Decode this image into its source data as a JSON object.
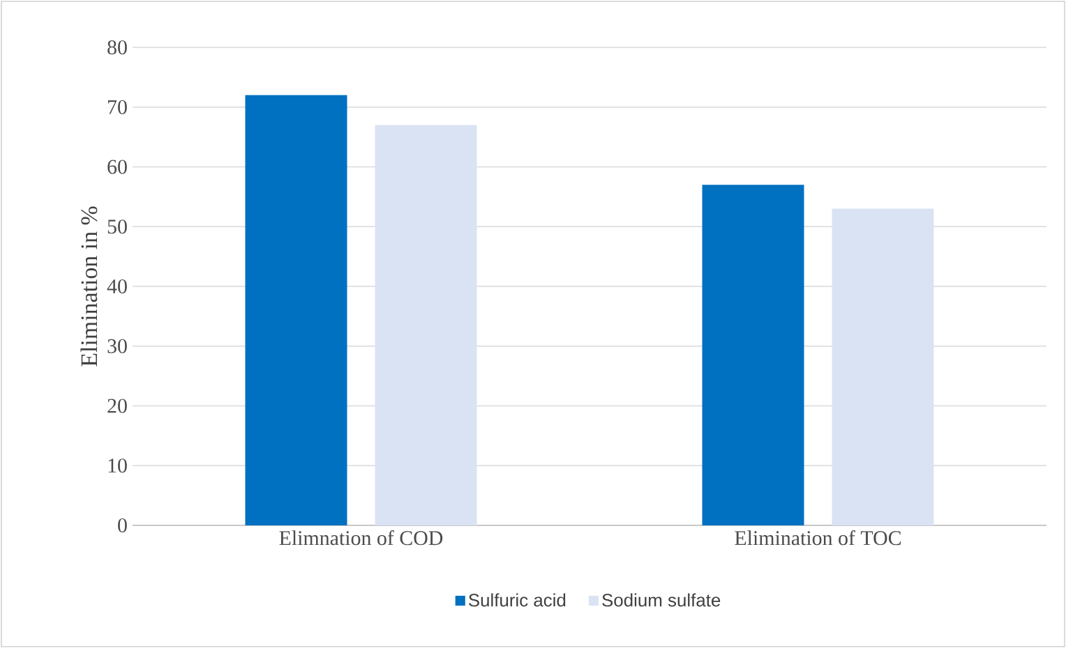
{
  "chart_data": {
    "type": "bar",
    "ylabel": "Elimination in %",
    "categories": [
      "Elimnation of COD",
      "Elimination of TOC"
    ],
    "series": [
      {
        "name": "Sulfuric acid",
        "color": "#0070c0",
        "values": [
          72,
          57
        ]
      },
      {
        "name": "Sodium sulfate",
        "color": "#dae3f3",
        "values": [
          67,
          53
        ]
      }
    ],
    "ylim": [
      0,
      80
    ],
    "yticks": [
      0,
      10,
      20,
      30,
      40,
      50,
      60,
      70,
      80
    ],
    "grid": "y",
    "legend": "bottom"
  }
}
